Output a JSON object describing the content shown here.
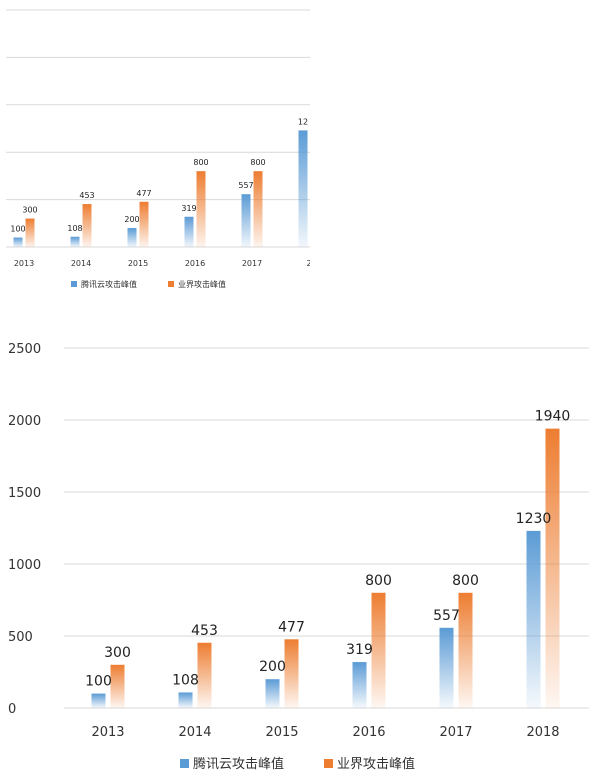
{
  "chart_data": [
    {
      "type": "bar",
      "categories": [
        "2013",
        "2014",
        "2015",
        "2016",
        "2017",
        "2018"
      ],
      "series": [
        {
          "name": "腾讯云攻击峰值",
          "values": [
            100,
            108,
            200,
            319,
            557,
            1230
          ],
          "labels": [
            "100",
            "108",
            "200",
            "319",
            "557",
            "12"
          ],
          "color": "#5b9bd5"
        },
        {
          "name": "业界攻击峰值",
          "values": [
            300,
            453,
            477,
            800,
            800,
            1940
          ],
          "labels": [
            "300",
            "453",
            "477",
            "800",
            "800",
            ""
          ],
          "color": "#ed7d31"
        }
      ],
      "category_labels": [
        "2013",
        "2014",
        "2015",
        "2016",
        "2017",
        "2"
      ],
      "ylim": [
        0,
        2500
      ],
      "grid": true,
      "legend": "bottom",
      "cropped": "right"
    },
    {
      "type": "bar",
      "categories": [
        "2013",
        "2014",
        "2015",
        "2016",
        "2017",
        "2018"
      ],
      "series": [
        {
          "name": "腾讯云攻击峰值",
          "values": [
            100,
            108,
            200,
            319,
            557,
            1230
          ],
          "labels": [
            "100",
            "108",
            "200",
            "319",
            "557",
            "1230"
          ],
          "color": "#5b9bd5"
        },
        {
          "name": "业界攻击峰值",
          "values": [
            300,
            453,
            477,
            800,
            800,
            1940
          ],
          "labels": [
            "300",
            "453",
            "477",
            "800",
            "800",
            "1940"
          ],
          "color": "#ed7d31"
        }
      ],
      "category_labels": [
        "2013",
        "2014",
        "2015",
        "2016",
        "2017",
        "2018"
      ],
      "yticks": [
        "0",
        "500",
        "1000",
        "1500",
        "2000",
        "2500"
      ],
      "ylim": [
        0,
        2500
      ],
      "grid": true,
      "legend": "bottom"
    }
  ]
}
